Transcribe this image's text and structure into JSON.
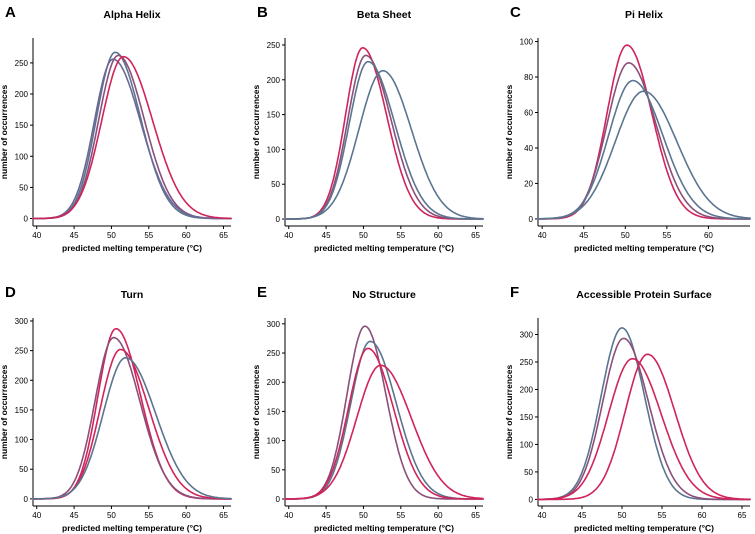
{
  "figure": {
    "xlabel": "predicted melting temperature (°C)",
    "ylabel": "number of occurrences"
  },
  "colors": {
    "crimson": "#d0245a",
    "slate": "#5b7590",
    "mauve": "#8c4f7a"
  },
  "chart_data": [
    {
      "letter": "A",
      "title": "Alpha Helix",
      "type": "line",
      "xlim": [
        39.5,
        66
      ],
      "xticks": [
        40,
        45,
        50,
        55,
        60,
        65
      ],
      "ylim": [
        -12,
        290
      ],
      "yticks": [
        0,
        50,
        100,
        150,
        200,
        250
      ],
      "series": [
        {
          "name": "curve-1",
          "color": "#5b7590",
          "peak_x": 50.5,
          "peak_y": 267,
          "sigma_left": 2.5,
          "sigma_right": 3.4,
          "baseline": 0
        },
        {
          "name": "curve-2",
          "color": "#8c4f7a",
          "peak_x": 50.9,
          "peak_y": 262,
          "sigma_left": 2.6,
          "sigma_right": 3.5,
          "baseline": 0
        },
        {
          "name": "curve-3",
          "color": "#6a6a98",
          "peak_x": 50.2,
          "peak_y": 256,
          "sigma_left": 2.5,
          "sigma_right": 3.7,
          "baseline": 0
        },
        {
          "name": "curve-4",
          "color": "#d0245a",
          "peak_x": 51.6,
          "peak_y": 260,
          "sigma_left": 2.9,
          "sigma_right": 3.9,
          "baseline": 0
        }
      ]
    },
    {
      "letter": "B",
      "title": "Beta Sheet",
      "type": "line",
      "xlim": [
        39.5,
        66
      ],
      "xticks": [
        40,
        45,
        50,
        55,
        60,
        65
      ],
      "ylim": [
        -10,
        260
      ],
      "yticks": [
        0,
        50,
        100,
        150,
        200,
        250
      ],
      "series": [
        {
          "name": "curve-1",
          "color": "#d0245a",
          "peak_x": 49.9,
          "peak_y": 246,
          "sigma_left": 2.3,
          "sigma_right": 3.2,
          "baseline": 0
        },
        {
          "name": "curve-2",
          "color": "#8c4f7a",
          "peak_x": 50.3,
          "peak_y": 235,
          "sigma_left": 2.4,
          "sigma_right": 3.4,
          "baseline": 0
        },
        {
          "name": "curve-3",
          "color": "#5b7590",
          "peak_x": 50.6,
          "peak_y": 226,
          "sigma_left": 2.5,
          "sigma_right": 3.6,
          "baseline": 0
        },
        {
          "name": "curve-4",
          "color": "#5b7590",
          "peak_x": 52.6,
          "peak_y": 213,
          "sigma_left": 3.2,
          "sigma_right": 3.8,
          "baseline": 0
        }
      ]
    },
    {
      "letter": "C",
      "title": "Pi Helix",
      "type": "line",
      "xlim": [
        39.5,
        65
      ],
      "xticks": [
        40,
        45,
        50,
        55,
        60
      ],
      "ylim": [
        -4,
        102
      ],
      "yticks": [
        0,
        20,
        40,
        60,
        80,
        100
      ],
      "series": [
        {
          "name": "curve-1",
          "color": "#d0245a",
          "peak_x": 50.2,
          "peak_y": 98,
          "sigma_left": 2.4,
          "sigma_right": 3.0,
          "baseline": 0
        },
        {
          "name": "curve-2",
          "color": "#8c4f7a",
          "peak_x": 50.4,
          "peak_y": 88,
          "sigma_left": 2.6,
          "sigma_right": 3.3,
          "baseline": 0
        },
        {
          "name": "curve-3",
          "color": "#5b7590",
          "peak_x": 50.9,
          "peak_y": 78,
          "sigma_left": 2.9,
          "sigma_right": 3.6,
          "baseline": 0
        },
        {
          "name": "curve-4",
          "color": "#5b7590",
          "peak_x": 52.2,
          "peak_y": 72,
          "sigma_left": 3.4,
          "sigma_right": 4.0,
          "baseline": 0
        }
      ]
    },
    {
      "letter": "D",
      "title": "Turn",
      "type": "line",
      "xlim": [
        39.5,
        66
      ],
      "xticks": [
        40,
        45,
        50,
        55,
        60,
        65
      ],
      "ylim": [
        -12,
        305
      ],
      "yticks": [
        0,
        50,
        100,
        150,
        200,
        250,
        300
      ],
      "series": [
        {
          "name": "curve-1",
          "color": "#d0245a",
          "peak_x": 50.6,
          "peak_y": 287,
          "sigma_left": 2.4,
          "sigma_right": 3.3,
          "baseline": 0
        },
        {
          "name": "curve-2",
          "color": "#8c4f7a",
          "peak_x": 50.3,
          "peak_y": 272,
          "sigma_left": 2.5,
          "sigma_right": 3.5,
          "baseline": 0
        },
        {
          "name": "curve-3",
          "color": "#d0245a",
          "peak_x": 51.2,
          "peak_y": 252,
          "sigma_left": 2.7,
          "sigma_right": 3.8,
          "baseline": 0
        },
        {
          "name": "curve-4",
          "color": "#5b7590",
          "peak_x": 51.9,
          "peak_y": 238,
          "sigma_left": 3.0,
          "sigma_right": 4.0,
          "baseline": 0
        }
      ]
    },
    {
      "letter": "E",
      "title": "No Structure",
      "type": "line",
      "xlim": [
        39.5,
        66
      ],
      "xticks": [
        40,
        45,
        50,
        55,
        60,
        65
      ],
      "ylim": [
        -12,
        310
      ],
      "yticks": [
        0,
        50,
        100,
        150,
        200,
        250,
        300
      ],
      "series": [
        {
          "name": "curve-1",
          "color": "#8c4f7a",
          "peak_x": 50.2,
          "peak_y": 296,
          "sigma_left": 2.4,
          "sigma_right": 2.8,
          "baseline": 0
        },
        {
          "name": "curve-2",
          "color": "#5b7590",
          "peak_x": 50.9,
          "peak_y": 270,
          "sigma_left": 2.6,
          "sigma_right": 3.5,
          "baseline": 0
        },
        {
          "name": "curve-3",
          "color": "#d0245a",
          "peak_x": 50.6,
          "peak_y": 258,
          "sigma_left": 2.6,
          "sigma_right": 3.4,
          "baseline": 0
        },
        {
          "name": "curve-4",
          "color": "#d0245a",
          "peak_x": 52.3,
          "peak_y": 229,
          "sigma_left": 3.2,
          "sigma_right": 4.1,
          "baseline": 0
        }
      ]
    },
    {
      "letter": "F",
      "title": "Accessible Protein Surface",
      "type": "line",
      "xlim": [
        39.5,
        66
      ],
      "xticks": [
        40,
        45,
        50,
        55,
        60,
        65
      ],
      "ylim": [
        -12,
        330
      ],
      "yticks": [
        0,
        50,
        100,
        150,
        200,
        250,
        300
      ],
      "series": [
        {
          "name": "curve-1",
          "color": "#5b7590",
          "peak_x": 50.0,
          "peak_y": 312,
          "sigma_left": 2.6,
          "sigma_right": 2.8,
          "baseline": 0
        },
        {
          "name": "curve-2",
          "color": "#8c4f7a",
          "peak_x": 50.2,
          "peak_y": 293,
          "sigma_left": 2.6,
          "sigma_right": 3.1,
          "baseline": 0
        },
        {
          "name": "curve-3",
          "color": "#d0245a",
          "peak_x": 51.3,
          "peak_y": 256,
          "sigma_left": 3.0,
          "sigma_right": 3.6,
          "baseline": 0
        },
        {
          "name": "curve-4",
          "color": "#d0245a",
          "peak_x": 53.2,
          "peak_y": 264,
          "sigma_left": 2.8,
          "sigma_right": 3.4,
          "baseline": 0
        }
      ]
    }
  ]
}
